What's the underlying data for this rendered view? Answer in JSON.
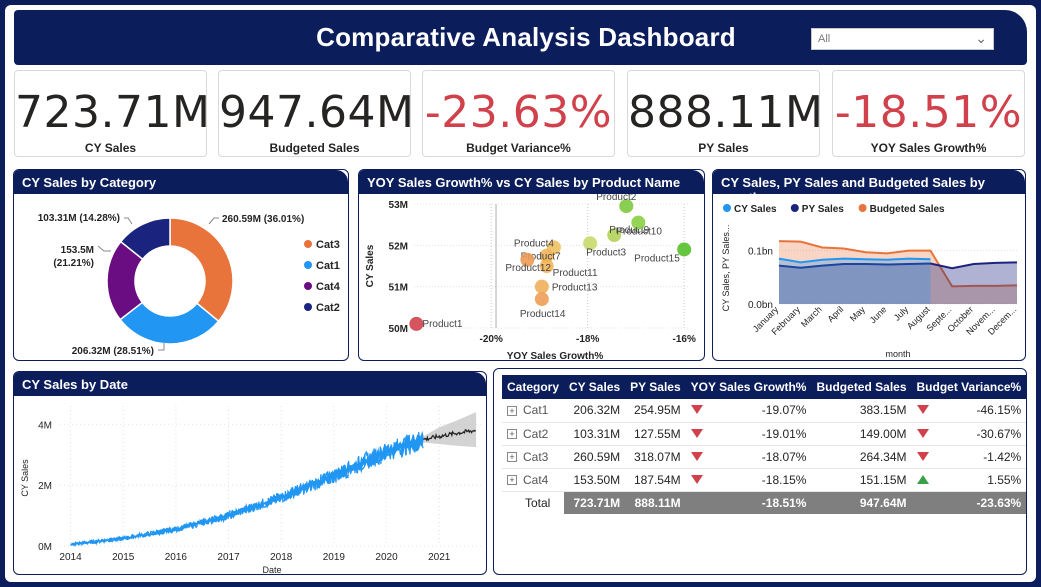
{
  "header": {
    "title": "Comparative Analysis Dashboard",
    "filter_value": "All",
    "filter_icon": "chevron-down-icon"
  },
  "kpis": [
    {
      "value": "723.71M",
      "label": "CY Sales",
      "negative": false
    },
    {
      "value": "947.64M",
      "label": "Budgeted Sales",
      "negative": false
    },
    {
      "value": "-23.63%",
      "label": "Budget Variance%",
      "negative": true
    },
    {
      "value": "888.11M",
      "label": "PY Sales",
      "negative": false
    },
    {
      "value": "-18.51%",
      "label": "YOY Sales Growth%",
      "negative": true
    }
  ],
  "colors": {
    "navy": "#0c1d5c",
    "negative": "#d0414b",
    "positive": "#3b9f4a",
    "cy": "#2196f3",
    "py": "#1a237e",
    "budget": "#e8743b"
  },
  "chart_data": [
    {
      "type": "pie",
      "title": "CY Sales by Category",
      "donut": true,
      "slices": [
        {
          "label": "Cat3",
          "value": 260.59,
          "data_label": "260.59M (36.01%)",
          "color": "#e8743b"
        },
        {
          "label": "Cat1",
          "value": 206.32,
          "data_label": "206.32M (28.51%)",
          "color": "#2196f3"
        },
        {
          "label": "Cat4",
          "value": 153.5,
          "data_label_1": "153.5M",
          "data_label_2": "(21.21%)",
          "color": "#6a0d83"
        },
        {
          "label": "Cat2",
          "value": 103.31,
          "data_label": "103.31M (14.28%)",
          "color": "#1a237e"
        }
      ],
      "legend_order": [
        "Cat3",
        "Cat1",
        "Cat4",
        "Cat2"
      ],
      "legend": "right"
    },
    {
      "type": "scatter",
      "title": "YOY Sales Growth% vs CY Sales by Product Name",
      "xlabel": "YOY Sales Growth%",
      "ylabel": "CY Sales",
      "xlim": [
        -21.6,
        -15.9
      ],
      "ylim": [
        50,
        53
      ],
      "xticks": [
        {
          "v": -20,
          "label": "-20%"
        },
        {
          "v": -18,
          "label": "-18%"
        },
        {
          "v": -16,
          "label": "-16%"
        }
      ],
      "yticks": [
        {
          "v": 50,
          "label": "50M"
        },
        {
          "v": 51,
          "label": "51M"
        },
        {
          "v": 52,
          "label": "52M"
        },
        {
          "v": 53,
          "label": "53M"
        }
      ],
      "points": [
        {
          "name": "Product1",
          "x": -21.55,
          "y": 50.1,
          "color": "#d0414b"
        },
        {
          "name": "Product2",
          "x": -17.2,
          "y": 52.95,
          "color": "#7dc93f"
        },
        {
          "name": "Product3",
          "x": -17.95,
          "y": 52.05,
          "color": "#c8d96a"
        },
        {
          "name": "Product4",
          "x": -18.7,
          "y": 51.95,
          "color": "#f0c060"
        },
        {
          "name": "Product7",
          "x": -18.85,
          "y": 51.75,
          "color": "#f2b45a"
        },
        {
          "name": "Product9",
          "x": -17.45,
          "y": 52.25,
          "color": "#b3d459"
        },
        {
          "name": "Product10",
          "x": -16.95,
          "y": 52.55,
          "color": "#8bcf46"
        },
        {
          "name": "Product11",
          "x": -18.85,
          "y": 51.5,
          "color": "#f2b45a"
        },
        {
          "name": "Product12",
          "x": -19.25,
          "y": 51.65,
          "color": "#ec9a55"
        },
        {
          "name": "Product13",
          "x": -18.95,
          "y": 51.0,
          "color": "#f0b05c"
        },
        {
          "name": "Product14",
          "x": -18.95,
          "y": 50.7,
          "color": "#ee9f58"
        },
        {
          "name": "Product15",
          "x": -16.0,
          "y": 51.9,
          "color": "#55c02a"
        }
      ]
    },
    {
      "type": "area",
      "title": "CY Sales, PY Sales and Budgeted Sales by month",
      "xlabel": "month",
      "ylabel": "CY Sales, PY Sales...",
      "categories": [
        "January",
        "February",
        "March",
        "April",
        "May",
        "June",
        "July",
        "August",
        "Septe...",
        "October",
        "Novem...",
        "Decem..."
      ],
      "yticks": [
        {
          "v": 0,
          "label": "0.0bn"
        },
        {
          "v": 0.1,
          "label": "0.1bn"
        }
      ],
      "ylim": [
        0,
        0.15
      ],
      "legend": "top-left",
      "series": [
        {
          "name": "CY Sales",
          "color": "#2196f3",
          "values": [
            0.085,
            0.078,
            0.083,
            0.085,
            0.084,
            0.083,
            0.085,
            0.084,
            0,
            0,
            0,
            0
          ]
        },
        {
          "name": "PY Sales",
          "color": "#1a237e",
          "values": [
            0.072,
            0.068,
            0.072,
            0.075,
            0.075,
            0.074,
            0.075,
            0.076,
            0.067,
            0.075,
            0.077,
            0.078
          ]
        },
        {
          "name": "Budgeted Sales",
          "color": "#e8743b",
          "values": [
            0.118,
            0.117,
            0.106,
            0.104,
            0.097,
            0.095,
            0.1,
            0.1,
            0.033,
            0.034,
            0.034,
            0.035
          ]
        }
      ]
    },
    {
      "type": "line",
      "title": "CY Sales by Date",
      "xlabel": "Date",
      "ylabel": "CY Sales",
      "xlim": [
        2013.8,
        2021.85
      ],
      "ylim": [
        0,
        4.6
      ],
      "xticks": [
        {
          "v": 2014,
          "label": "2014"
        },
        {
          "v": 2015,
          "label": "2015"
        },
        {
          "v": 2016,
          "label": "2016"
        },
        {
          "v": 2017,
          "label": "2017"
        },
        {
          "v": 2018,
          "label": "2018"
        },
        {
          "v": 2019,
          "label": "2019"
        },
        {
          "v": 2020,
          "label": "2020"
        },
        {
          "v": 2021,
          "label": "2021"
        }
      ],
      "yticks": [
        {
          "v": 0,
          "label": "0M"
        },
        {
          "v": 2,
          "label": "2M"
        },
        {
          "v": 4,
          "label": "4M"
        }
      ],
      "actual": {
        "color": "#2196f3",
        "x": [
          2014.0,
          2015.0,
          2016.0,
          2017.0,
          2018.0,
          2019.0,
          2020.0,
          2020.7
        ],
        "y": [
          0.05,
          0.25,
          0.55,
          1.0,
          1.6,
          2.3,
          3.1,
          3.5
        ]
      },
      "forecast": {
        "color": "#222222",
        "band_color": "#c8c8c8",
        "x": [
          2020.7,
          2021.0,
          2021.3,
          2021.7
        ],
        "y": [
          3.5,
          3.6,
          3.7,
          3.8
        ],
        "lower": [
          3.4,
          3.35,
          3.3,
          3.25
        ],
        "upper": [
          3.6,
          3.9,
          4.1,
          4.4
        ]
      }
    }
  ],
  "table": {
    "headers": [
      "Category",
      "CY Sales",
      "PY Sales",
      "YOY Sales Growth%",
      "Budgeted Sales",
      "Budget Variance%"
    ],
    "rows": [
      {
        "category": "Cat1",
        "cy": "206.32M",
        "py": "254.95M",
        "yoy": "-19.07%",
        "yoy_trend": "down",
        "budget": "383.15M",
        "variance": "-46.15%",
        "var_trend": "down"
      },
      {
        "category": "Cat2",
        "cy": "103.31M",
        "py": "127.55M",
        "yoy": "-19.01%",
        "yoy_trend": "down",
        "budget": "149.00M",
        "variance": "-30.67%",
        "var_trend": "down"
      },
      {
        "category": "Cat3",
        "cy": "260.59M",
        "py": "318.07M",
        "yoy": "-18.07%",
        "yoy_trend": "down",
        "budget": "264.34M",
        "variance": "-1.42%",
        "var_trend": "down"
      },
      {
        "category": "Cat4",
        "cy": "153.50M",
        "py": "187.54M",
        "yoy": "-18.15%",
        "yoy_trend": "down",
        "budget": "151.15M",
        "variance": "1.55%",
        "var_trend": "up"
      }
    ],
    "total": {
      "category": "Total",
      "cy": "723.71M",
      "py": "888.11M",
      "yoy": "-18.51%",
      "budget": "947.64M",
      "variance": "-23.63%"
    }
  }
}
